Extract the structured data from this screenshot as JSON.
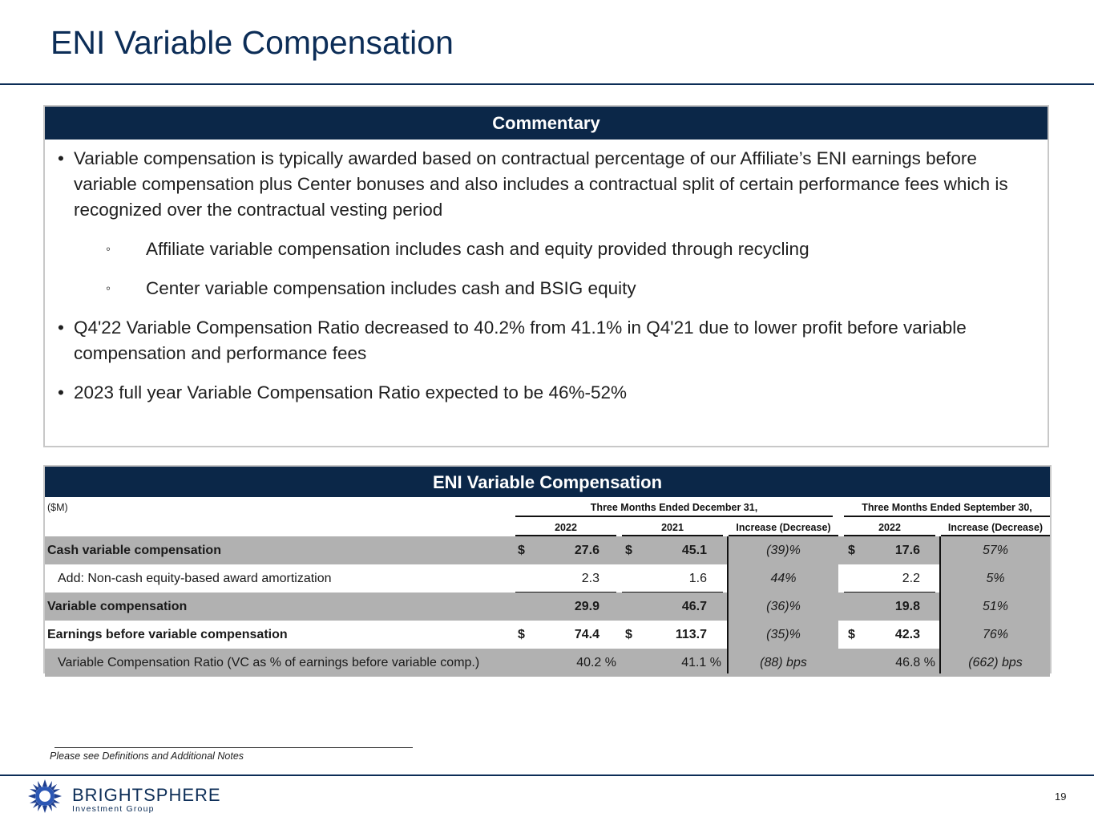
{
  "title": "ENI Variable Compensation",
  "commentary": {
    "header": "Commentary",
    "bullets": [
      "Variable compensation is typically awarded based on contractual percentage of our Affiliate’s ENI earnings before variable compensation plus Center bonuses and also includes a contractual split of certain performance fees which is recognized over the contractual vesting period",
      "Affiliate variable compensation includes cash and equity provided through recycling",
      "Center variable compensation includes cash and BSIG equity",
      "Q4'22 Variable Compensation Ratio decreased to 40.2% from 41.1% in Q4'21 due to lower profit before variable compensation and performance fees",
      "2023 full year Variable Compensation Ratio expected to be 46%-52%"
    ],
    "bullet_glyph": "•",
    "sub_bullet_glyph": "◦"
  },
  "table": {
    "header": "ENI Variable Compensation",
    "unit": "($M)",
    "group1": "Three Months Ended December 31,",
    "group2": "Three Months Ended September 30,",
    "cols": [
      "2022",
      "2021",
      "Increase (Decrease)",
      "2022",
      "Increase (Decrease)"
    ],
    "dollar": "$",
    "rows": [
      {
        "label": "Cash variable compensation",
        "c1": "27.6",
        "c2": "45.1",
        "c3": "(39)%",
        "c4": "17.6",
        "c5": "57%"
      },
      {
        "label": "Add: Non-cash equity-based award amortization",
        "c1": "2.3",
        "c2": "1.6",
        "c3": "44%",
        "c4": "2.2",
        "c5": "5%"
      },
      {
        "label": "Variable compensation",
        "c1": "29.9",
        "c2": "46.7",
        "c3": "(36)%",
        "c4": "19.8",
        "c5": "51%"
      },
      {
        "label": "Earnings before variable compensation",
        "c1": "74.4",
        "c2": "113.7",
        "c3": "(35)%",
        "c4": "42.3",
        "c5": "76%"
      },
      {
        "label": "Variable Compensation Ratio (VC as % of earnings before variable comp.)",
        "c1": "40.2 %",
        "c2": "41.1 %",
        "c3": "(88) bps",
        "c4": "46.8 %",
        "c5": "(662) bps"
      }
    ]
  },
  "footnote": "Please see Definitions and Additional Notes",
  "brand": {
    "name": "BRIGHTSPHERE",
    "sub": "Investment Group",
    "color": "#0c2d57"
  },
  "page_number": "19"
}
